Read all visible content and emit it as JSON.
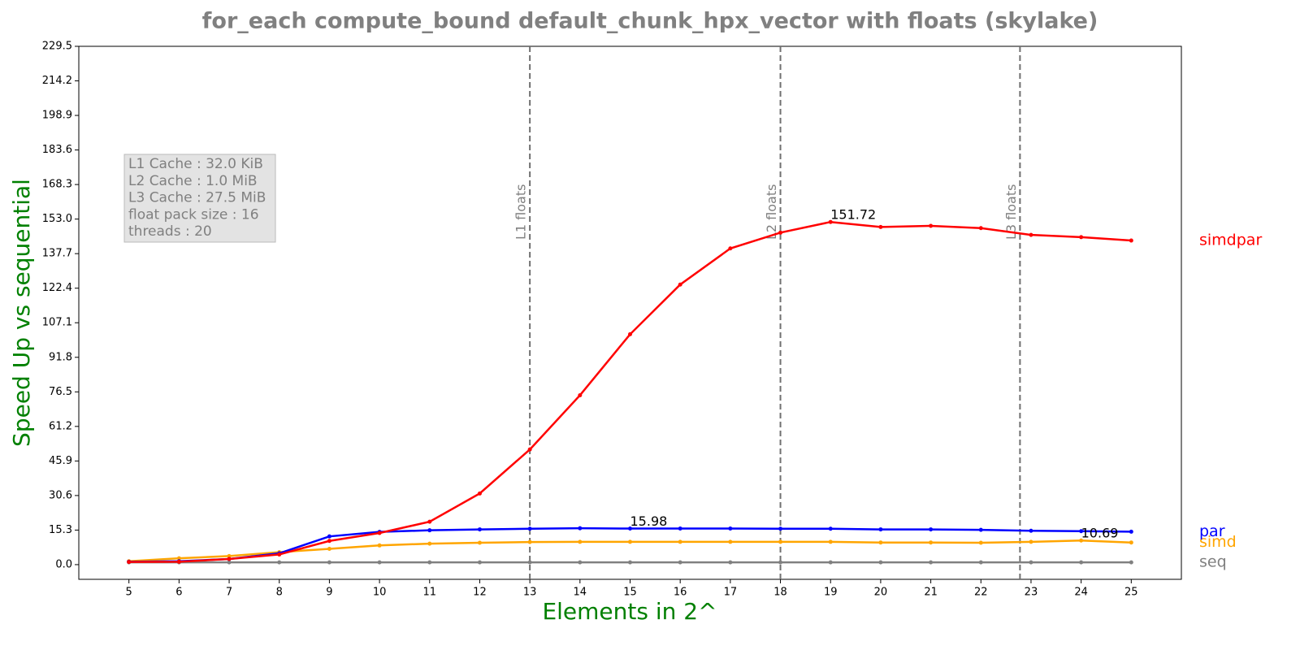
{
  "chart_data": {
    "type": "line",
    "title": "for_each compute_bound default_chunk_hpx_vector with floats  (skylake)",
    "xlabel": "Elements in 2^",
    "ylabel": "Speed Up vs sequential",
    "x": [
      5,
      6,
      7,
      8,
      9,
      10,
      11,
      12,
      13,
      14,
      15,
      16,
      17,
      18,
      19,
      20,
      21,
      22,
      23,
      24,
      25
    ],
    "xlim": [
      4,
      26
    ],
    "xticks": [
      5,
      6,
      7,
      8,
      9,
      10,
      11,
      12,
      13,
      14,
      15,
      16,
      17,
      18,
      19,
      20,
      21,
      22,
      23,
      24,
      25
    ],
    "ylim": [
      -6.5,
      229.5
    ],
    "yticks": [
      {
        "value": 0,
        "label": "0.0"
      },
      15.3,
      30.6,
      45.9,
      61.2,
      76.5,
      91.8,
      107.1,
      122.4,
      137.7,
      {
        "value": 153,
        "label": "153.0"
      },
      168.3,
      183.6,
      198.9,
      214.2,
      229.5
    ],
    "series": [
      {
        "name": "simdpar",
        "color": "#ff0000",
        "values": [
          1.2,
          1.3,
          2.5,
          4.5,
          10.5,
          14,
          19,
          31.5,
          51,
          75,
          102,
          124,
          140,
          147,
          151.72,
          149.5,
          150,
          149,
          146,
          145,
          143.5
        ]
      },
      {
        "name": "par",
        "color": "#0000ff",
        "values": [
          1.3,
          1.5,
          2.5,
          5,
          12.5,
          14.5,
          15.2,
          15.6,
          15.9,
          16.1,
          15.98,
          16,
          16,
          15.9,
          15.9,
          15.6,
          15.6,
          15.4,
          15,
          14.8,
          14.6
        ]
      },
      {
        "name": "simd",
        "color": "#ffa500",
        "values": [
          1.5,
          2.8,
          3.8,
          5.5,
          7,
          8.5,
          9.3,
          9.7,
          10,
          10.1,
          10.1,
          10.1,
          10.1,
          10.1,
          10.1,
          9.8,
          9.8,
          9.7,
          10.1,
          10.69,
          9.8
        ]
      },
      {
        "name": "seq",
        "color": "#808080",
        "values": [
          1,
          1,
          1,
          1,
          1,
          1,
          1,
          1,
          1,
          1,
          1,
          1,
          1,
          1,
          1,
          1,
          1,
          1,
          1,
          1,
          1
        ]
      }
    ],
    "vlines": [
      {
        "x": 13,
        "label": "L1 floats"
      },
      {
        "x": 18,
        "label": "L2 floats"
      },
      {
        "x": 22.78,
        "label": "L3 floats"
      }
    ],
    "annotations": [
      {
        "text": "151.72",
        "x": 19,
        "y": 151.72
      },
      {
        "text": "15.98",
        "x": 15,
        "y": 15.98
      },
      {
        "text": "10.69",
        "x": 24,
        "y": 10.69
      }
    ],
    "info_box": [
      "L1 Cache : 32.0 KiB",
      "L2 Cache : 1.0 MiB",
      "L3 Cache : 27.5 MiB",
      "float pack size : 16",
      "threads : 20"
    ]
  }
}
